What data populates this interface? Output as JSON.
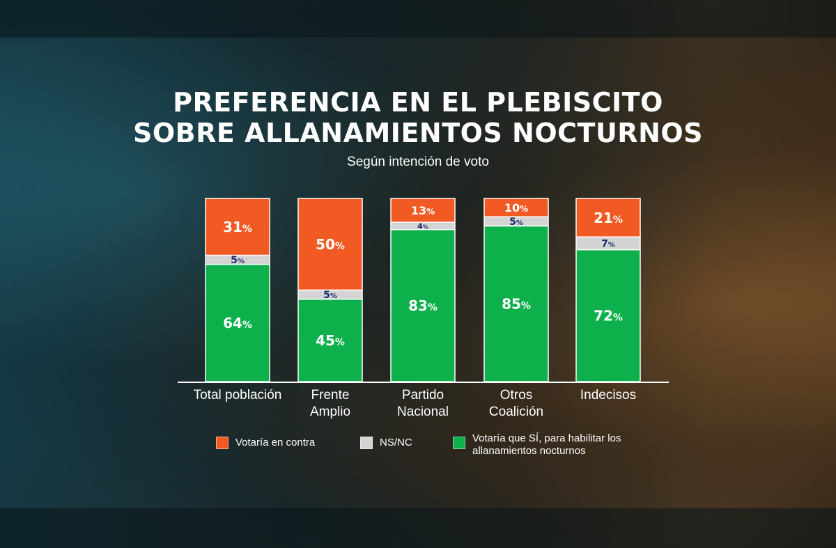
{
  "colors": {
    "contra": "#f15a22",
    "nsnc": "#d4d4d4",
    "si": "#0db04b",
    "nsnc_text": "#1a2a6b",
    "axis": "#ffffff"
  },
  "chart_data": {
    "type": "bar",
    "stacked": true,
    "title": "PREFERENCIA EN EL PLEBISCITO SOBRE ALLANAMIENTOS NOCTURNOS",
    "title_lines": [
      "PREFERENCIA EN EL PLEBISCITO",
      "SOBRE ALLANAMIENTOS NOCTURNOS"
    ],
    "subtitle": "Según intención de voto",
    "categories": [
      [
        "Total población"
      ],
      [
        "Frente",
        "Amplio"
      ],
      [
        "Partido",
        "Nacional"
      ],
      [
        "Otros",
        "Coalición"
      ],
      [
        "Indecisos"
      ]
    ],
    "series": [
      {
        "name": "Votaría que SÍ, para habilitar los allanamientos nocturnos",
        "values": [
          64,
          45,
          83,
          85,
          72
        ]
      },
      {
        "name": "NS/NC",
        "values": [
          5,
          5,
          4,
          5,
          7
        ]
      },
      {
        "name": "Votaría en contra",
        "values": [
          31,
          50,
          13,
          10,
          21
        ]
      }
    ],
    "ylim": [
      0,
      100
    ],
    "legend_position": "bottom"
  },
  "legend": [
    {
      "label": "Votaría en contra",
      "color": "#f15a22"
    },
    {
      "label": "NS/NC",
      "color": "#d4d4d4"
    },
    {
      "label": "Votaría que SÍ, para habilitar los allanamientos nocturnos",
      "color": "#0db04b"
    }
  ]
}
